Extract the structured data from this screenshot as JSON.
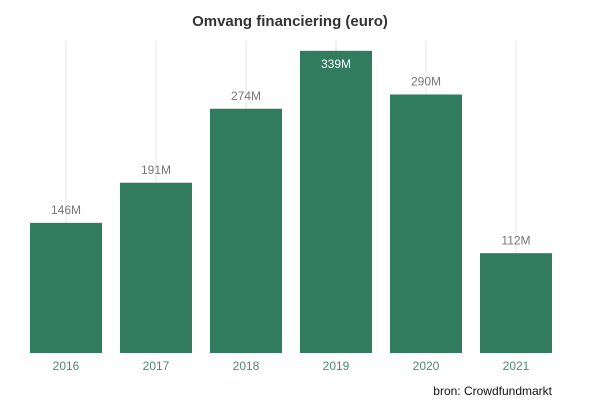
{
  "chart_data": {
    "type": "bar",
    "title": "Omvang financiering (euro)",
    "categories": [
      "2016",
      "2017",
      "2018",
      "2019",
      "2020",
      "2021"
    ],
    "values": [
      146,
      191,
      274,
      339,
      290,
      112
    ],
    "value_labels": [
      "146M",
      "191M",
      "274M",
      "339M",
      "290M",
      "112M"
    ],
    "color": "#317c5e",
    "ylim": [
      0,
      350
    ],
    "grid": true,
    "source": "bron: Crowdfundmarkt"
  }
}
